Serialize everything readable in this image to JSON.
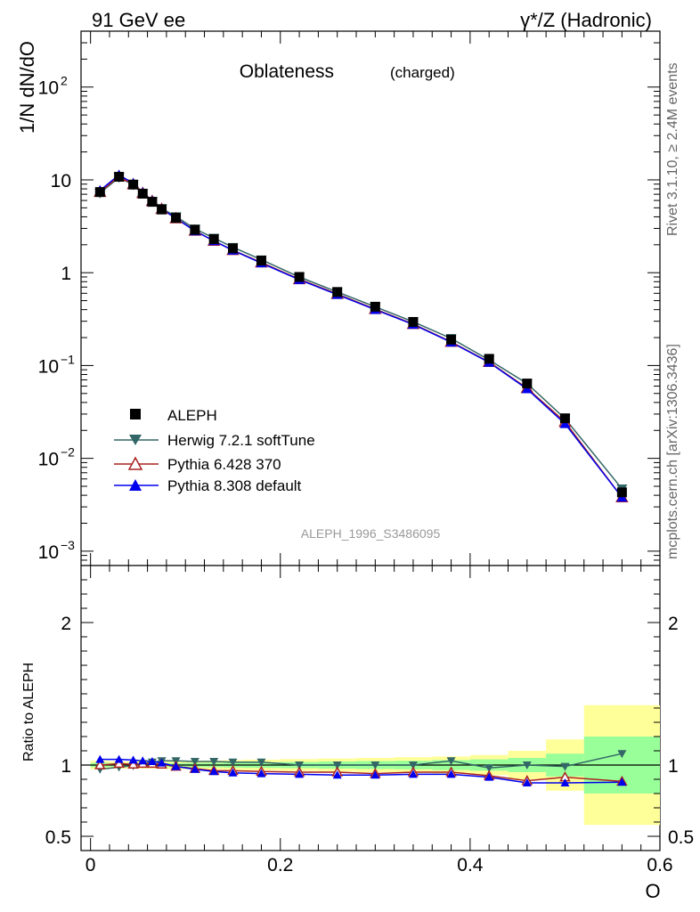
{
  "header": {
    "left": "91 GeV ee",
    "right": "γ*/Z (Hadronic)"
  },
  "side": {
    "top": "Rivet 3.1.10, ≥ 2.4M events",
    "bottom": "mcplots.cern.ch [arXiv:1306.3436]"
  },
  "chart_data": [
    {
      "type": "line",
      "title": "Oblateness",
      "title_suffix": "(charged)",
      "ylabel": "1/N dN/dO",
      "xlabel": "O",
      "yscale": "log",
      "xlim": [
        -0.01,
        0.6
      ],
      "ylim": [
        0.0007,
        400
      ],
      "analysis_label": "ALEPH_1996_S3486095",
      "legend_position": "lower-left",
      "x": [
        0.01,
        0.03,
        0.045,
        0.055,
        0.065,
        0.075,
        0.09,
        0.11,
        0.13,
        0.15,
        0.18,
        0.22,
        0.26,
        0.3,
        0.34,
        0.38,
        0.42,
        0.46,
        0.5,
        0.56
      ],
      "series": [
        {
          "name": "ALEPH",
          "color": "#000000",
          "marker": "square",
          "values": [
            7.4,
            10.8,
            8.9,
            7.1,
            5.8,
            4.8,
            3.9,
            2.9,
            2.3,
            1.83,
            1.35,
            0.9,
            0.62,
            0.43,
            0.295,
            0.19,
            0.118,
            0.064,
            0.027,
            0.0043
          ]
        },
        {
          "name": "Herwig 7.2.1 softTune",
          "color": "#336666",
          "marker": "triangle-down",
          "values": [
            7.2,
            10.6,
            8.85,
            7.15,
            5.9,
            4.93,
            4.02,
            2.97,
            2.36,
            1.88,
            1.38,
            0.9,
            0.62,
            0.43,
            0.296,
            0.196,
            0.115,
            0.064,
            0.0268,
            0.0047
          ]
        },
        {
          "name": "Pythia 6.428 370",
          "color": "#aa2222",
          "marker": "triangle-up-open",
          "values": [
            7.4,
            10.9,
            8.95,
            7.2,
            5.9,
            4.85,
            3.85,
            2.83,
            2.2,
            1.75,
            1.29,
            0.85,
            0.59,
            0.405,
            0.28,
            0.18,
            0.109,
            0.057,
            0.0247,
            0.0038
          ]
        },
        {
          "name": "Pythia 8.308 default",
          "color": "#0000ee",
          "marker": "triangle-up",
          "values": [
            7.7,
            11.3,
            9.2,
            7.3,
            5.95,
            4.85,
            3.86,
            2.81,
            2.2,
            1.74,
            1.27,
            0.84,
            0.58,
            0.4,
            0.277,
            0.178,
            0.108,
            0.056,
            0.0236,
            0.0038
          ]
        }
      ]
    },
    {
      "type": "line",
      "ylabel": "Ratio to ALEPH",
      "xlabel": "O",
      "xlim": [
        -0.01,
        0.6
      ],
      "ylim": [
        0.4,
        2.4
      ],
      "xticks": [
        "0",
        "0.2",
        "0.4",
        "0.6"
      ],
      "yticks": [
        "0.5",
        "1",
        "2"
      ],
      "x": [
        0.01,
        0.03,
        0.045,
        0.055,
        0.065,
        0.075,
        0.09,
        0.11,
        0.13,
        0.15,
        0.18,
        0.22,
        0.26,
        0.3,
        0.34,
        0.38,
        0.42,
        0.46,
        0.5,
        0.56
      ],
      "band_edges": [
        0.0,
        0.02,
        0.04,
        0.05,
        0.06,
        0.07,
        0.08,
        0.1,
        0.12,
        0.14,
        0.16,
        0.2,
        0.24,
        0.28,
        0.32,
        0.36,
        0.4,
        0.44,
        0.48,
        0.52,
        0.6
      ],
      "band_inner": [
        0.015,
        0.012,
        0.012,
        0.012,
        0.012,
        0.013,
        0.014,
        0.015,
        0.016,
        0.018,
        0.02,
        0.022,
        0.025,
        0.028,
        0.03,
        0.035,
        0.04,
        0.05,
        0.08,
        0.2
      ],
      "band_outer": [
        0.03,
        0.025,
        0.025,
        0.025,
        0.025,
        0.026,
        0.028,
        0.03,
        0.032,
        0.035,
        0.038,
        0.042,
        0.046,
        0.05,
        0.055,
        0.06,
        0.07,
        0.1,
        0.18,
        0.42
      ],
      "series": [
        {
          "name": "Herwig 7.2.1 softTune",
          "color": "#336666",
          "values": [
            0.97,
            0.985,
            0.995,
            1.01,
            1.02,
            1.03,
            1.03,
            1.025,
            1.025,
            1.02,
            1.02,
            1.0,
            1.0,
            1.0,
            1.0,
            1.03,
            0.98,
            1.0,
            0.99,
            1.08
          ]
        },
        {
          "name": "Pythia 6.428 370",
          "color": "#aa2222",
          "values": [
            1.0,
            1.01,
            1.005,
            1.01,
            1.01,
            1.005,
            0.99,
            0.975,
            0.96,
            0.96,
            0.955,
            0.95,
            0.95,
            0.94,
            0.95,
            0.95,
            0.925,
            0.89,
            0.915,
            0.885
          ]
        },
        {
          "name": "Pythia 8.308 default",
          "color": "#0000ee",
          "values": [
            1.04,
            1.04,
            1.035,
            1.03,
            1.025,
            1.015,
            0.99,
            0.97,
            0.955,
            0.945,
            0.94,
            0.935,
            0.93,
            0.93,
            0.935,
            0.935,
            0.915,
            0.875,
            0.875,
            0.88
          ]
        }
      ]
    }
  ]
}
